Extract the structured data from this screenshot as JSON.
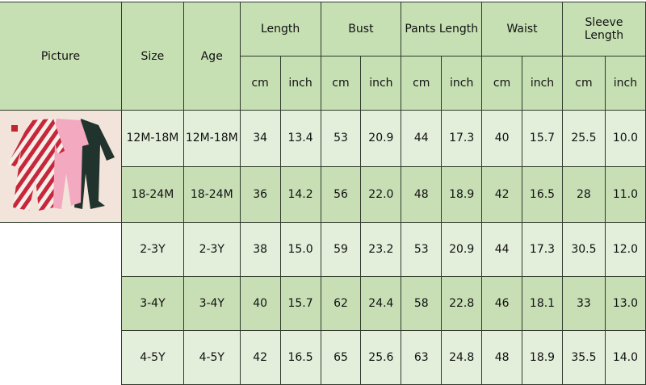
{
  "colors": {
    "header": "#c6dfb3",
    "row_light": "#e3eedb",
    "row_dark": "#c8dfb6",
    "border": "#2f3a2c"
  },
  "headers": {
    "picture": "Picture",
    "size": "Size",
    "age": "Age",
    "groups": [
      "Length",
      "Bust",
      "Pants Length",
      "Waist",
      "Sleeve Length"
    ],
    "unit_cm": "cm",
    "unit_inch": "inch"
  },
  "picture": {
    "description_icon": "pajamas-product-photo"
  },
  "rows": [
    {
      "size": "12M-18M",
      "age": "12M-18M",
      "values": [
        "34",
        "13.4",
        "53",
        "20.9",
        "44",
        "17.3",
        "40",
        "15.7",
        "25.5",
        "10.0"
      ]
    },
    {
      "size": "18-24M",
      "age": "18-24M",
      "values": [
        "36",
        "14.2",
        "56",
        "22.0",
        "48",
        "18.9",
        "42",
        "16.5",
        "28",
        "11.0"
      ]
    },
    {
      "size": "2-3Y",
      "age": "2-3Y",
      "values": [
        "38",
        "15.0",
        "59",
        "23.2",
        "53",
        "20.9",
        "44",
        "17.3",
        "30.5",
        "12.0"
      ]
    },
    {
      "size": "3-4Y",
      "age": "3-4Y",
      "values": [
        "40",
        "15.7",
        "62",
        "24.4",
        "58",
        "22.8",
        "46",
        "18.1",
        "33",
        "13.0"
      ]
    },
    {
      "size": "4-5Y",
      "age": "4-5Y",
      "values": [
        "42",
        "16.5",
        "65",
        "25.6",
        "63",
        "24.8",
        "48",
        "18.9",
        "35.5",
        "14.0"
      ]
    }
  ]
}
